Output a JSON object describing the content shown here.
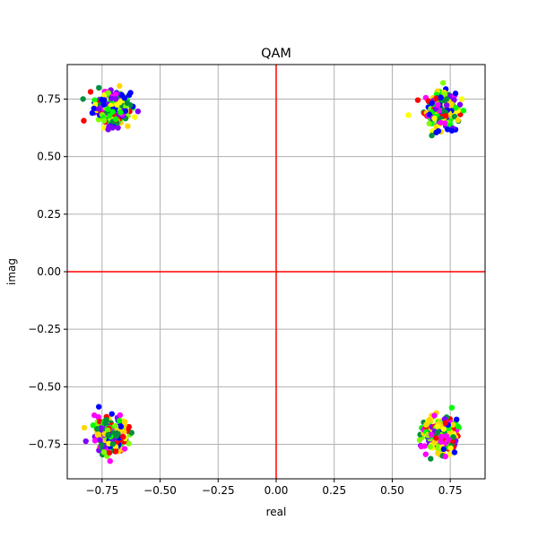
{
  "chart_data": {
    "type": "scatter",
    "title": "QAM",
    "xlabel": "real",
    "ylabel": "imag",
    "xlim": [
      -0.9,
      0.9
    ],
    "ylim": [
      -0.9,
      0.9
    ],
    "xticks": [
      "−0.75",
      "−0.50",
      "−0.25",
      "0.00",
      "0.25",
      "0.50",
      "0.75"
    ],
    "yticks": [
      "−0.75",
      "−0.50",
      "−0.25",
      "0.00",
      "0.25",
      "0.50",
      "0.75"
    ],
    "grid": true,
    "reference_lines": {
      "x": 0,
      "y": 0,
      "color": "#ff0000"
    },
    "clusters": [
      {
        "center": [
          -0.71,
          0.71
        ],
        "points": 300
      },
      {
        "center": [
          0.71,
          0.71
        ],
        "points": 300
      },
      {
        "center": [
          -0.71,
          -0.71
        ],
        "points": 300
      },
      {
        "center": [
          0.71,
          -0.71
        ],
        "points": 300
      }
    ],
    "point_colors": [
      "#ff0000",
      "#ff00ff",
      "#7f00ff",
      "#0000ff",
      "#008f3f",
      "#00ff00",
      "#7fff00",
      "#ffff00",
      "#ffd700"
    ]
  }
}
